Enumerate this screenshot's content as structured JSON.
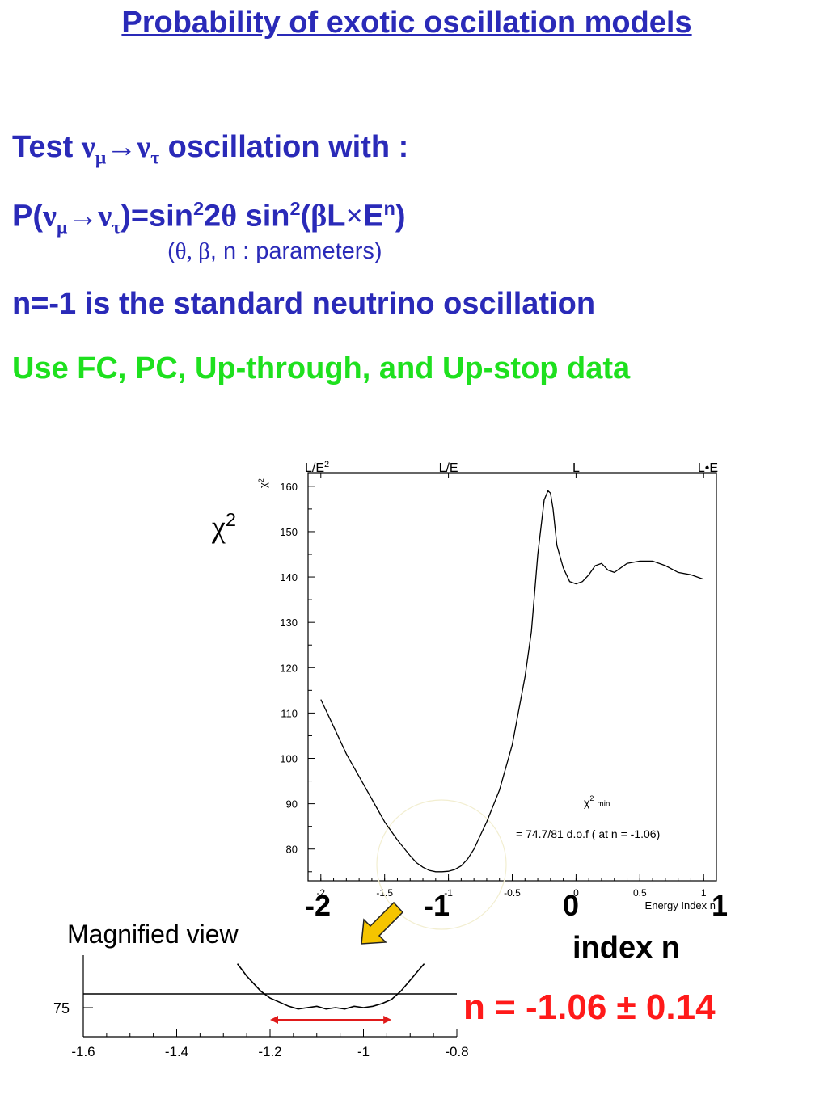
{
  "title": "Probability of exotic oscillation models",
  "test_line": {
    "pre": "Test ",
    "nu1": "ν",
    "mu": "μ",
    "arrow": "→",
    "nu2": "ν",
    "tau": "τ",
    "post": " oscillation with :"
  },
  "formula": {
    "p_open": "P(",
    "nu1": "ν",
    "mu": "μ",
    "arrow": "→",
    "nu2": "ν",
    "tau": "τ",
    "close_eq_sin": ")=sin",
    "sq1": "2",
    "two": "2",
    "theta": "θ",
    "sin2": " sin",
    "sq2": "2",
    "paren": "(",
    "beta": "β",
    "L": "L",
    "times": "×",
    "E": "E",
    "n": "n",
    "end": ")"
  },
  "params_note": {
    "open": "(",
    "theta": "θ",
    "comma1": ", ",
    "beta": "β",
    "rest": ", n : parameters)"
  },
  "statement": "n=-1 is the standard neutrino oscillation",
  "data_note": "Use FC, PC, Up-through, and Up-stop data",
  "chi2_label": {
    "chi": "χ",
    "sup": "2"
  },
  "big_ticks": [
    "-2",
    "-1",
    "0",
    "1"
  ],
  "x_name": "index n",
  "magnified_label": "Magnified view",
  "result": "n = -1.06 ± 0.14",
  "colors": {
    "blue": "#2a2ab8",
    "green": "#1ee01e",
    "red": "#ff1a1a",
    "arrow": "#f5c400"
  },
  "chart_data": [
    {
      "type": "line",
      "top_axis_labels": [
        "L/E2",
        "L/E",
        "L",
        "L•E"
      ],
      "y_title": "χ2",
      "xlabel": "Energy Index n",
      "xlim": [
        -2.1,
        1.1
      ],
      "ylim": [
        73,
        163
      ],
      "x_ticks": [
        "-2",
        "-1.5",
        "-1",
        "-0.5",
        "0",
        "0.5",
        "1"
      ],
      "y_ticks": [
        "80",
        "90",
        "100",
        "110",
        "120",
        "130",
        "140",
        "150",
        "160"
      ],
      "annotation": {
        "line1": "χ2",
        "sub": "min",
        "line2": "= 74.7/81 d.o.f ( at n = -1.06)"
      },
      "series": [
        {
          "x": [
            -2.0,
            -1.9,
            -1.8,
            -1.7,
            -1.6,
            -1.5,
            -1.4,
            -1.3,
            -1.25,
            -1.2,
            -1.15,
            -1.1,
            -1.05,
            -1.0,
            -0.95,
            -0.9,
            -0.85,
            -0.8,
            -0.75,
            -0.7,
            -0.6,
            -0.5,
            -0.4,
            -0.35,
            -0.3,
            -0.25,
            -0.22,
            -0.2,
            -0.18,
            -0.15,
            -0.1,
            -0.05,
            0.0,
            0.05,
            0.1,
            0.15,
            0.2,
            0.25,
            0.3,
            0.4,
            0.5,
            0.6,
            0.7,
            0.8,
            0.9,
            1.0
          ],
          "y": [
            113,
            107,
            101,
            96,
            91,
            86,
            82,
            78.5,
            77,
            76,
            75.3,
            75.0,
            75.0,
            75.1,
            75.5,
            76.3,
            77.8,
            80,
            83,
            86,
            93,
            103,
            118,
            128,
            145,
            157,
            159,
            158.5,
            155,
            147,
            142,
            139,
            138.5,
            139,
            140.5,
            142.5,
            143,
            141.5,
            141,
            143,
            143.5,
            143.5,
            142.5,
            141,
            140.5,
            139.5
          ]
        }
      ]
    },
    {
      "type": "line",
      "title": "Magnified view",
      "xlim": [
        -1.6,
        -0.8
      ],
      "x_ticks": [
        "-1.6",
        "-1.4",
        "-1.2",
        "-1",
        "-0.8"
      ],
      "y_ticks": [
        "75"
      ],
      "threshold": 76.0,
      "interval": [
        -1.2,
        -0.94
      ],
      "series": [
        {
          "x": [
            -1.27,
            -1.25,
            -1.22,
            -1.2,
            -1.18,
            -1.16,
            -1.14,
            -1.12,
            -1.1,
            -1.08,
            -1.06,
            -1.04,
            -1.02,
            -1.0,
            -0.98,
            -0.96,
            -0.94,
            -0.92,
            -0.9,
            -0.88,
            -0.87
          ],
          "y": [
            78.2,
            77.3,
            76.2,
            75.7,
            75.4,
            75.1,
            74.9,
            75.0,
            75.1,
            74.9,
            75.0,
            74.9,
            75.1,
            75.0,
            75.1,
            75.3,
            75.6,
            76.2,
            77.0,
            77.8,
            78.2
          ]
        }
      ]
    }
  ]
}
